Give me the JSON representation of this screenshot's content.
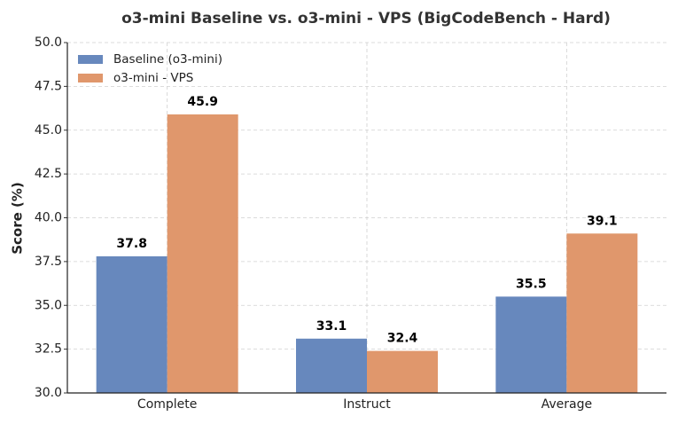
{
  "chart_data": {
    "type": "bar",
    "title": "o3-mini Baseline vs. o3-mini - VPS (BigCodeBench - Hard)",
    "y_label": "Score (%)",
    "categories": [
      "Complete",
      "Instruct",
      "Average"
    ],
    "series": [
      {
        "name": "Baseline (o3-mini)",
        "color": "#6788bd",
        "values": [
          37.8,
          33.1,
          35.5
        ]
      },
      {
        "name": "o3-mini - VPS",
        "color": "#e0976c",
        "values": [
          45.9,
          32.4,
          39.1
        ]
      }
    ],
    "ylim": [
      30,
      50
    ],
    "yticks": [
      {
        "value": 30,
        "label": "30.0"
      },
      {
        "value": 32.5,
        "label": "32.5"
      },
      {
        "value": 35,
        "label": "35.0"
      },
      {
        "value": 37.5,
        "label": "37.5"
      },
      {
        "value": 40,
        "label": "40.0"
      },
      {
        "value": 42.5,
        "label": "42.5"
      },
      {
        "value": 45,
        "label": "45.0"
      },
      {
        "value": 47.5,
        "label": "47.5"
      },
      {
        "value": 50,
        "label": "50.0"
      }
    ],
    "grid": true,
    "legend": "upper-left"
  }
}
